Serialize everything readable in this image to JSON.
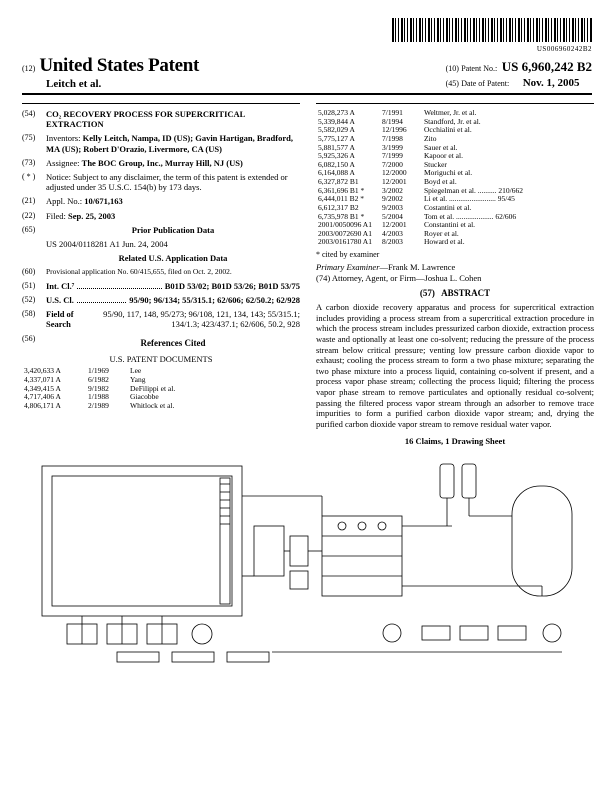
{
  "barcode_text": "US006960242B2",
  "header": {
    "doc_type_num": "(12)",
    "main_title": "United States Patent",
    "author_line": "Leitch et al.",
    "patent_no_num": "(10)",
    "patent_no_label": "Patent No.:",
    "patent_no_value": "US 6,960,242 B2",
    "date_num": "(45)",
    "date_label": "Date of Patent:",
    "date_value": "Nov. 1, 2005"
  },
  "left": {
    "title_num": "(54)",
    "title": "CO₂ RECOVERY PROCESS FOR SUPERCRITICAL EXTRACTION",
    "inventors_num": "(75)",
    "inventors_label": "Inventors:",
    "inventors": "Kelly Leitch, Nampa, ID (US); Gavin Hartigan, Bradford, MA (US); Robert D'Orazio, Livermore, CA (US)",
    "assignee_num": "(73)",
    "assignee_label": "Assignee:",
    "assignee": "The BOC Group, Inc., Murray Hill, NJ (US)",
    "notice_num": "( * )",
    "notice_label": "Notice:",
    "notice": "Subject to any disclaimer, the term of this patent is extended or adjusted under 35 U.S.C. 154(b) by 173 days.",
    "appl_num": "(21)",
    "appl_label": "Appl. No.:",
    "appl": "10/671,163",
    "filed_num": "(22)",
    "filed_label": "Filed:",
    "filed": "Sep. 25, 2003",
    "prior_pub_num": "(65)",
    "prior_pub_label": "Prior Publication Data",
    "prior_pub": "US 2004/0118281 A1 Jun. 24, 2004",
    "related_label": "Related U.S. Application Data",
    "provisional_num": "(60)",
    "provisional": "Provisional application No. 60/415,655, filed on Oct. 2, 2002.",
    "intcl_num": "(51)",
    "intcl_label": "Int. Cl.⁷",
    "intcl": "B01D 53/02; B01D 53/26; B01D 53/75",
    "uscl_num": "(52)",
    "uscl_label": "U.S. Cl.",
    "uscl": "95/90; 96/134; 55/315.1; 62/606; 62/50.2; 62/928",
    "fos_num": "(58)",
    "fos_label": "Field of Search",
    "fos": "95/90, 117, 148, 95/273; 96/108, 121, 134, 143; 55/315.1; 134/1.3; 423/437.1; 62/606, 50.2, 928",
    "refs_num": "(56)",
    "refs_label": "References Cited",
    "refs_sub": "U.S. PATENT DOCUMENTS",
    "refs_us1": [
      [
        "3,420,633 A",
        "1/1969",
        "Lee"
      ],
      [
        "4,337,071 A",
        "6/1982",
        "Yang"
      ],
      [
        "4,349,415 A",
        "9/1982",
        "DeFilippi et al."
      ],
      [
        "4,717,406 A",
        "1/1988",
        "Giacobbe"
      ],
      [
        "4,806,171 A",
        "2/1989",
        "Whitlock et al."
      ]
    ]
  },
  "right": {
    "refs_us2": [
      [
        "5,028,273 A",
        "7/1991",
        "Weltmer, Jr. et al."
      ],
      [
        "5,339,844 A",
        "8/1994",
        "Standford, Jr. et al."
      ],
      [
        "5,582,029 A",
        "12/1996",
        "Occhialini et al."
      ],
      [
        "5,775,127 A",
        "7/1998",
        "Zito"
      ],
      [
        "5,881,577 A",
        "3/1999",
        "Sauer et al."
      ],
      [
        "5,925,326 A",
        "7/1999",
        "Kapoor et al."
      ],
      [
        "6,082,150 A",
        "7/2000",
        "Stucker"
      ],
      [
        "6,164,088 A",
        "12/2000",
        "Moriguchi et al."
      ],
      [
        "6,327,872 B1",
        "12/2001",
        "Boyd et al."
      ],
      [
        "6,361,696 B1 *",
        "3/2002",
        "Spiegelman et al. .......... 210/662"
      ],
      [
        "6,444,011 B2 *",
        "9/2002",
        "Li et al. ......................... 95/45"
      ],
      [
        "6,612,317 B2",
        "9/2003",
        "Costantini et al."
      ],
      [
        "6,735,978 B1 *",
        "5/2004",
        "Tom et al. .................... 62/606"
      ],
      [
        "2001/0050096 A1",
        "12/2001",
        "Constantini et al."
      ],
      [
        "2003/0072690 A1",
        "4/2003",
        "Royer et al."
      ],
      [
        "2003/0161780 A1",
        "8/2003",
        "Howard et al."
      ]
    ],
    "cited_note": "* cited by examiner",
    "examiner_label": "Primary Examiner",
    "examiner": "—Frank M. Lawrence",
    "attorney_label": "(74) Attorney, Agent, or Firm",
    "attorney": "—Joshua L. Cohen",
    "abstract_num": "(57)",
    "abstract_label": "ABSTRACT",
    "abstract": "A carbon dioxide recovery apparatus and process for supercritical extraction includes providing a process stream from a supercritical extraction procedure in which the process stream includes pressurized carbon dioxide, extraction process waste and optionally at least one co-solvent; reducing the pressure of the process stream below critical pressure; venting low pressure carbon dioxide vapor to exhaust; cooling the process stream to form a two phase mixture; separating the two phase mixture into a process liquid, containing co-solvent if present, and a process vapor phase stream; collecting the process liquid; filtering the process vapor phase stream to remove particulates and optionally residual co-solvent; passing the filtered process vapor stream through an adsorber to remove trace impurities to form a purified carbon dioxide vapor stream; and, drying the purified carbon dioxide vapor stream to remove residual water vapor.",
    "claims_line": "16 Claims, 1 Drawing Sheet"
  },
  "figure": {
    "stroke": "#000000",
    "stroke_width": 0.8,
    "background": "#ffffff"
  }
}
